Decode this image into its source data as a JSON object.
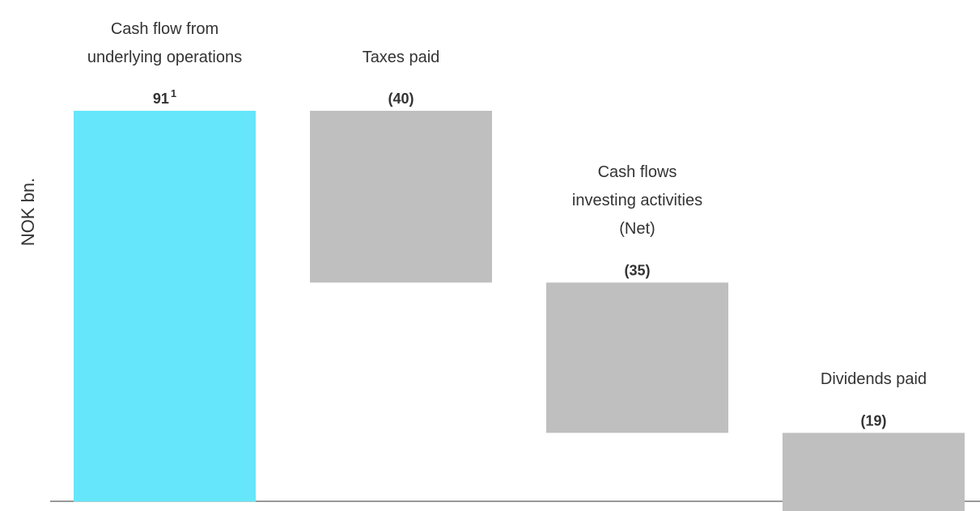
{
  "chart_data": {
    "type": "waterfall",
    "y_label": "NOK bn.",
    "categories": [
      "Cash flow from\nunderlying operations",
      "Taxes paid",
      "Cash flows\ninvesting activities\n(Net)",
      "Dividends paid"
    ],
    "values": [
      91,
      -40,
      -35,
      -19
    ],
    "value_labels": [
      "91",
      "(40)",
      "(35)",
      "(19)"
    ],
    "footnote_marker": "1",
    "colors": [
      "#66e6fa",
      "#bfbfbf",
      "#bfbfbf",
      "#bfbfbf"
    ],
    "ylim": [
      -2.2,
      116.8
    ]
  }
}
